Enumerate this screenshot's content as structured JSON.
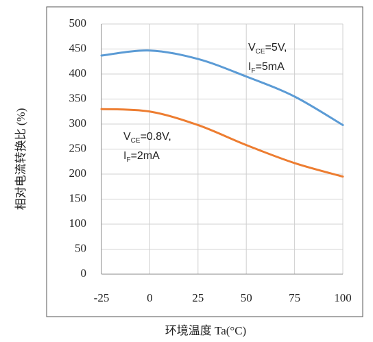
{
  "chart_data": {
    "type": "line",
    "xlabel": "环境温度 Ta(°C)",
    "ylabel": "相对电流转换比 (%)",
    "x": [
      -25,
      0,
      25,
      50,
      75,
      100
    ],
    "series": [
      {
        "name": "V_CE=5V, I_F=5mA",
        "color": "#5b9bd5",
        "values": [
          437,
          447,
          430,
          395,
          355,
          298
        ]
      },
      {
        "name": "V_CE=0.8V, I_F=2mA",
        "color": "#ed7d31",
        "values": [
          330,
          325,
          298,
          258,
          222,
          195
        ]
      }
    ],
    "annotations": [
      {
        "lines": [
          {
            "base": "V",
            "sub": "CE",
            "text": "=5V,"
          },
          {
            "base": "I",
            "sub": "F",
            "text": "=5mA"
          }
        ]
      },
      {
        "lines": [
          {
            "base": "V",
            "sub": "CE",
            "text": "=0.8V,"
          },
          {
            "base": "I",
            "sub": "F",
            "text": "=2mA"
          }
        ]
      }
    ],
    "xlim": [
      -25,
      100
    ],
    "xticks": [
      -25,
      0,
      25,
      50,
      75,
      100
    ],
    "ylim": [
      0,
      500
    ],
    "yticks": [
      0,
      50,
      100,
      150,
      200,
      250,
      300,
      350,
      400,
      450,
      500
    ],
    "grid": true
  }
}
